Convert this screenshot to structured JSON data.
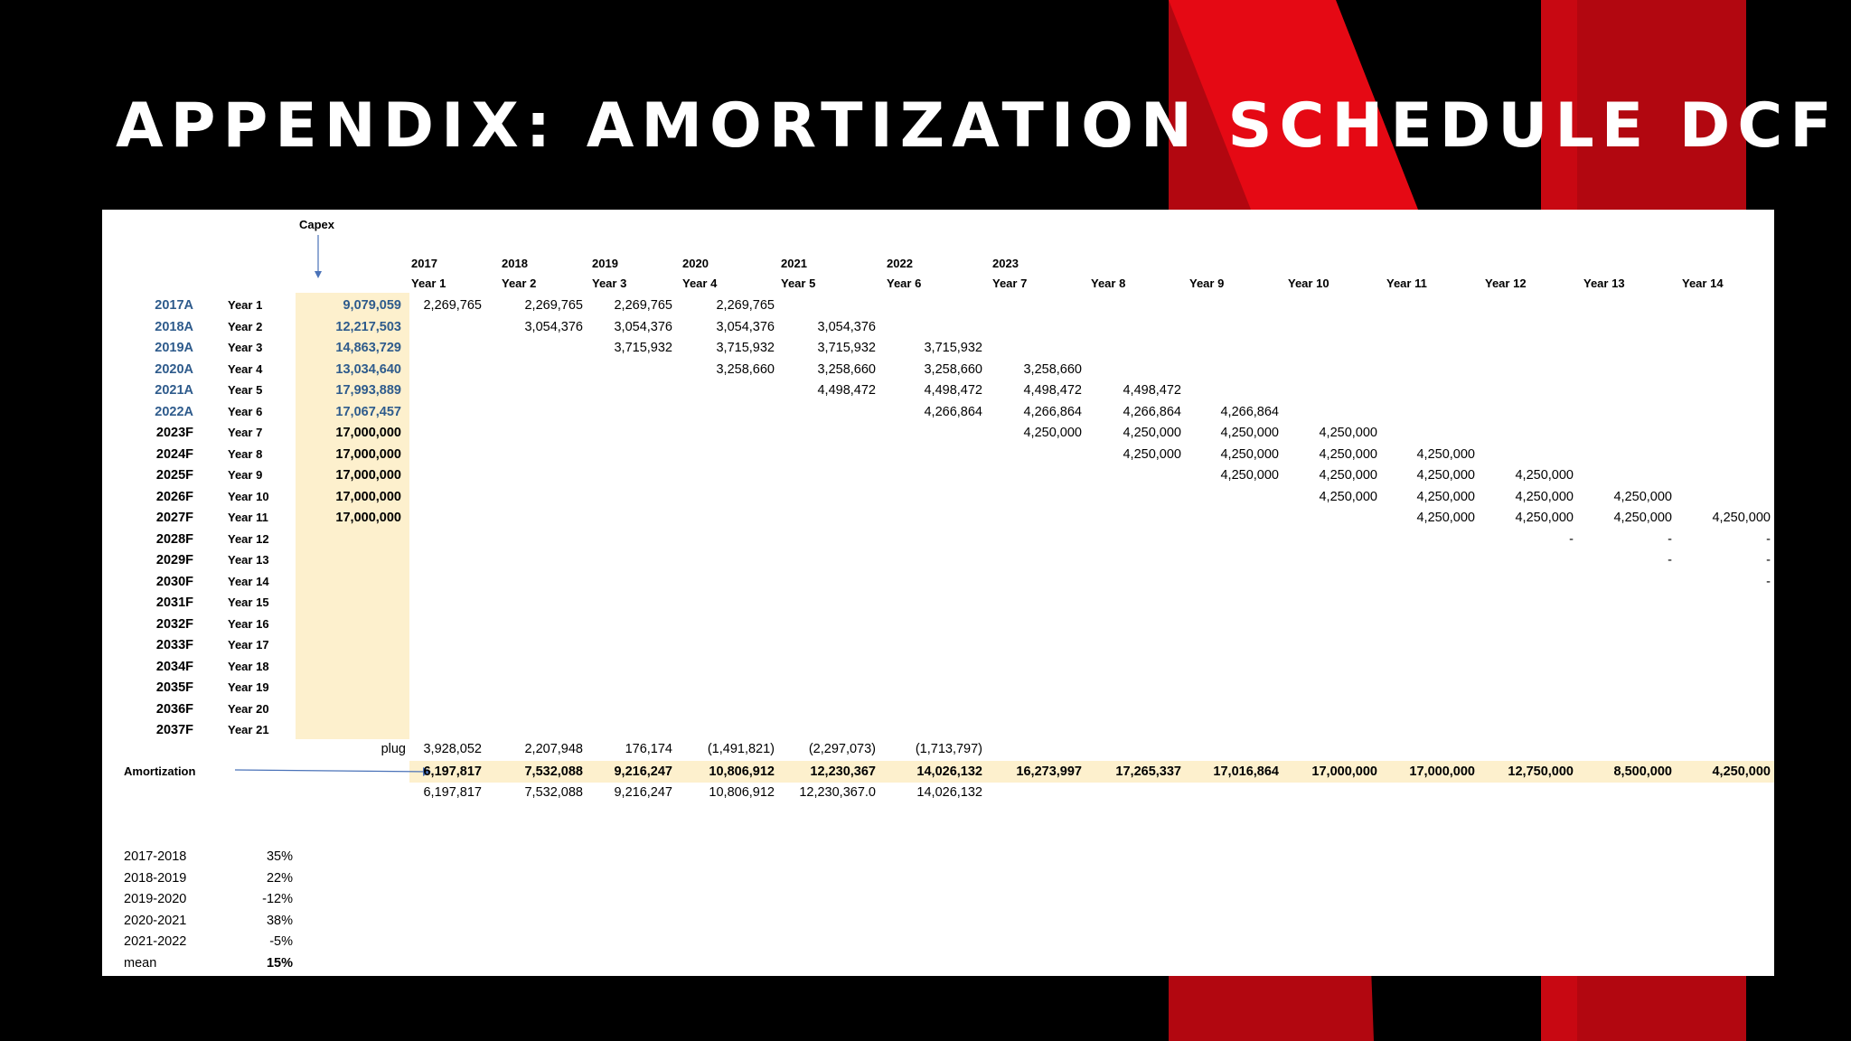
{
  "title": "APPENDIX: AMORTIZATION SCHEDULE DCF",
  "colors": {
    "background": "#000000",
    "netflix_red": "#e50914",
    "dark_red": "#b20710",
    "highlight": "#fdf0cd",
    "actual_blue": "#2e5b8c"
  },
  "sheet": {
    "capex_label": "Capex",
    "calendar_years": [
      "2017",
      "2018",
      "2019",
      "2020",
      "2021",
      "2022",
      "2023",
      "",
      "",
      "",
      "",
      "",
      "",
      ""
    ],
    "year_headers": [
      "Year 1",
      "Year 2",
      "Year 3",
      "Year 4",
      "Year 5",
      "Year 6",
      "Year 7",
      "Year 8",
      "Year 9",
      "Year 10",
      "Year 11",
      "Year 12",
      "Year 13",
      "Year 14"
    ],
    "rows": [
      {
        "label": "2017A",
        "year": "Year 1",
        "capex": "9,079,059",
        "actual": true,
        "cells": [
          "2,269,765",
          "2,269,765",
          "2,269,765",
          "2,269,765",
          "",
          "",
          "",
          "",
          "",
          "",
          "",
          "",
          "",
          ""
        ]
      },
      {
        "label": "2018A",
        "year": "Year 2",
        "capex": "12,217,503",
        "actual": true,
        "cells": [
          "",
          "3,054,376",
          "3,054,376",
          "3,054,376",
          "3,054,376",
          "",
          "",
          "",
          "",
          "",
          "",
          "",
          "",
          ""
        ]
      },
      {
        "label": "2019A",
        "year": "Year 3",
        "capex": "14,863,729",
        "actual": true,
        "cells": [
          "",
          "",
          "3,715,932",
          "3,715,932",
          "3,715,932",
          "3,715,932",
          "",
          "",
          "",
          "",
          "",
          "",
          "",
          ""
        ]
      },
      {
        "label": "2020A",
        "year": "Year 4",
        "capex": "13,034,640",
        "actual": true,
        "cells": [
          "",
          "",
          "",
          "3,258,660",
          "3,258,660",
          "3,258,660",
          "3,258,660",
          "",
          "",
          "",
          "",
          "",
          "",
          ""
        ]
      },
      {
        "label": "2021A",
        "year": "Year 5",
        "capex": "17,993,889",
        "actual": true,
        "cells": [
          "",
          "",
          "",
          "",
          "4,498,472",
          "4,498,472",
          "4,498,472",
          "4,498,472",
          "",
          "",
          "",
          "",
          "",
          ""
        ]
      },
      {
        "label": "2022A",
        "year": "Year 6",
        "capex": "17,067,457",
        "actual": true,
        "cells": [
          "",
          "",
          "",
          "",
          "",
          "4,266,864",
          "4,266,864",
          "4,266,864",
          "4,266,864",
          "",
          "",
          "",
          "",
          ""
        ]
      },
      {
        "label": "2023F",
        "year": "Year 7",
        "capex": "17,000,000",
        "actual": false,
        "cells": [
          "",
          "",
          "",
          "",
          "",
          "",
          "4,250,000",
          "4,250,000",
          "4,250,000",
          "4,250,000",
          "",
          "",
          "",
          ""
        ]
      },
      {
        "label": "2024F",
        "year": "Year 8",
        "capex": "17,000,000",
        "actual": false,
        "cells": [
          "",
          "",
          "",
          "",
          "",
          "",
          "",
          "4,250,000",
          "4,250,000",
          "4,250,000",
          "4,250,000",
          "",
          "",
          ""
        ]
      },
      {
        "label": "2025F",
        "year": "Year 9",
        "capex": "17,000,000",
        "actual": false,
        "cells": [
          "",
          "",
          "",
          "",
          "",
          "",
          "",
          "",
          "4,250,000",
          "4,250,000",
          "4,250,000",
          "4,250,000",
          "",
          ""
        ]
      },
      {
        "label": "2026F",
        "year": "Year 10",
        "capex": "17,000,000",
        "actual": false,
        "cells": [
          "",
          "",
          "",
          "",
          "",
          "",
          "",
          "",
          "",
          "4,250,000",
          "4,250,000",
          "4,250,000",
          "4,250,000",
          ""
        ]
      },
      {
        "label": "2027F",
        "year": "Year 11",
        "capex": "17,000,000",
        "actual": false,
        "cells": [
          "",
          "",
          "",
          "",
          "",
          "",
          "",
          "",
          "",
          "",
          "4,250,000",
          "4,250,000",
          "4,250,000",
          "4,250,000"
        ]
      },
      {
        "label": "2028F",
        "year": "Year 12",
        "capex": "",
        "actual": false,
        "cells": [
          "",
          "",
          "",
          "",
          "",
          "",
          "",
          "",
          "",
          "",
          "",
          "-",
          "-",
          "-"
        ]
      },
      {
        "label": "2029F",
        "year": "Year 13",
        "capex": "",
        "actual": false,
        "cells": [
          "",
          "",
          "",
          "",
          "",
          "",
          "",
          "",
          "",
          "",
          "",
          "",
          "-",
          "-"
        ]
      },
      {
        "label": "2030F",
        "year": "Year 14",
        "capex": "",
        "actual": false,
        "cells": [
          "",
          "",
          "",
          "",
          "",
          "",
          "",
          "",
          "",
          "",
          "",
          "",
          "",
          "-"
        ]
      },
      {
        "label": "2031F",
        "year": "Year 15",
        "capex": "",
        "actual": false,
        "cells": []
      },
      {
        "label": "2032F",
        "year": "Year 16",
        "capex": "",
        "actual": false,
        "cells": []
      },
      {
        "label": "2033F",
        "year": "Year 17",
        "capex": "",
        "actual": false,
        "cells": []
      },
      {
        "label": "2034F",
        "year": "Year 18",
        "capex": "",
        "actual": false,
        "cells": []
      },
      {
        "label": "2035F",
        "year": "Year 19",
        "capex": "",
        "actual": false,
        "cells": []
      },
      {
        "label": "2036F",
        "year": "Year 20",
        "capex": "",
        "actual": false,
        "cells": []
      },
      {
        "label": "2037F",
        "year": "Year 21",
        "capex": "",
        "actual": false,
        "cells": []
      }
    ],
    "plug": {
      "label": "plug",
      "values": [
        "3,928,052",
        "2,207,948",
        "176,174",
        "(1,491,821)",
        "(2,297,073)",
        "(1,713,797)"
      ]
    },
    "amortization": {
      "label": "Amortization",
      "values": [
        "6,197,817",
        "7,532,088",
        "9,216,247",
        "10,806,912",
        "12,230,367",
        "14,026,132",
        "16,273,997",
        "17,265,337",
        "17,016,864",
        "17,000,000",
        "17,000,000",
        "12,750,000",
        "8,500,000",
        "4,250,000"
      ]
    },
    "check_row": [
      "6,197,817",
      "7,532,088",
      "9,216,247",
      "10,806,912",
      "12,230,367.0",
      "14,026,132"
    ],
    "growth": [
      {
        "label": "2017-2018",
        "value": "35%"
      },
      {
        "label": "2018-2019",
        "value": "22%"
      },
      {
        "label": "2019-2020",
        "value": "-12%"
      },
      {
        "label": "2020-2021",
        "value": "38%"
      },
      {
        "label": "2021-2022",
        "value": "-5%"
      },
      {
        "label": "mean",
        "value": "15%",
        "bold": true
      }
    ]
  }
}
